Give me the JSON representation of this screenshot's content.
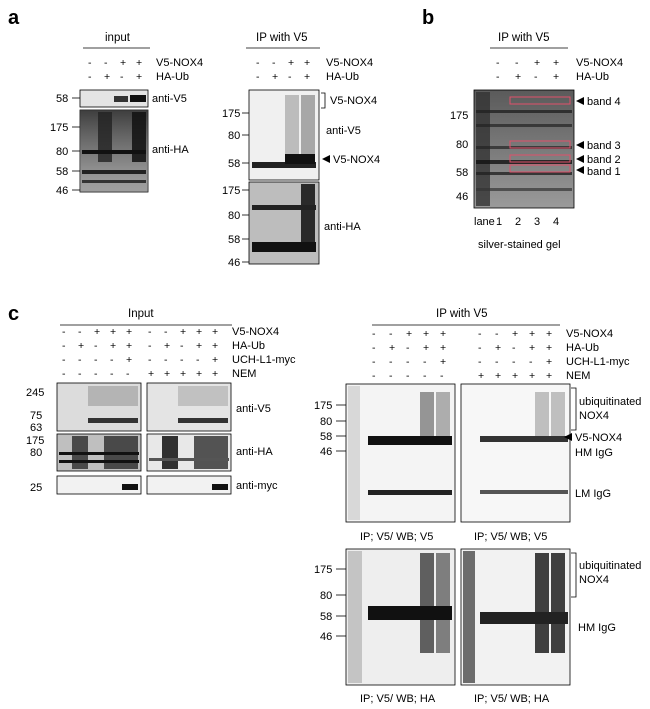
{
  "panel_a": {
    "letter": "a",
    "input": {
      "header": "input",
      "row_labels": [
        "V5-NOX4",
        "HA-Ub"
      ],
      "signs": [
        [
          "-",
          "-",
          "+",
          "+"
        ],
        [
          "-",
          "+",
          "-",
          "+"
        ]
      ],
      "blot1_label": "anti-V5",
      "blot1_markers": [
        "58"
      ],
      "blot2_label": "anti-HA",
      "blot2_markers": [
        "175",
        "80",
        "58",
        "46"
      ]
    },
    "ip": {
      "header": "IP with V5",
      "row_labels": [
        "V5-NOX4",
        "HA-Ub"
      ],
      "signs": [
        [
          "-",
          "-",
          "+",
          "+"
        ],
        [
          "-",
          "+",
          "-",
          "+"
        ]
      ],
      "blot1_markers": [
        "175",
        "80",
        "58"
      ],
      "blot1_labels": [
        "V5-NOX4",
        "anti-V5",
        "V5-NOX4"
      ],
      "blot2_markers": [
        "175",
        "80",
        "58",
        "46"
      ],
      "blot2_label": "anti-HA"
    }
  },
  "panel_b": {
    "letter": "b",
    "header": "IP with V5",
    "row_labels": [
      "V5-NOX4",
      "HA-Ub"
    ],
    "signs": [
      [
        "-",
        "-",
        "+",
        "+"
      ],
      [
        "-",
        "+",
        "-",
        "+"
      ]
    ],
    "markers": [
      "175",
      "80",
      "58",
      "46"
    ],
    "bands": [
      "band 4",
      "band 3",
      "band 2",
      "band 1"
    ],
    "lane_label": "lane",
    "lanes": [
      "1",
      "2",
      "3",
      "4"
    ],
    "caption": "silver-stained gel"
  },
  "panel_c": {
    "letter": "c",
    "input": {
      "header": "Input",
      "row_labels": [
        "V5-NOX4",
        "HA-Ub",
        "UCH-L1-myc",
        "NEM"
      ],
      "signs": [
        [
          "-",
          "-",
          "+",
          "+",
          "+",
          "-",
          "-",
          "+",
          "+",
          "+"
        ],
        [
          "-",
          "+",
          "-",
          "+",
          "+",
          "-",
          "+",
          "-",
          "+",
          "+"
        ],
        [
          "-",
          "-",
          "-",
          "-",
          "+",
          "-",
          "-",
          "-",
          "-",
          "+"
        ],
        [
          "-",
          "-",
          "-",
          "-",
          "-",
          "+",
          "+",
          "+",
          "+",
          "+"
        ]
      ],
      "blot1_markers": [
        "245",
        "75",
        "63"
      ],
      "blot1_label": "anti-V5",
      "blot2_markers": [
        "175",
        "80"
      ],
      "blot2_label": "anti-HA",
      "blot3_markers": [
        "25"
      ],
      "blot3_label": "anti-myc"
    },
    "ip": {
      "header": "IP with V5",
      "row_labels": [
        "V5-NOX4",
        "HA-Ub",
        "UCH-L1-myc",
        "NEM"
      ],
      "signs": [
        [
          "-",
          "-",
          "+",
          "+",
          "+",
          "-",
          "-",
          "+",
          "+",
          "+"
        ],
        [
          "-",
          "+",
          "-",
          "+",
          "+",
          "-",
          "+",
          "-",
          "+",
          "+"
        ],
        [
          "-",
          "-",
          "-",
          "-",
          "+",
          "-",
          "-",
          "-",
          "-",
          "+"
        ],
        [
          "-",
          "-",
          "-",
          "-",
          "-",
          "+",
          "+",
          "+",
          "+",
          "+"
        ]
      ],
      "top_markers": [
        "175",
        "80",
        "58",
        "46"
      ],
      "top_labels": [
        "ubiquitinated",
        "NOX4",
        "V5-NOX4",
        "HM IgG",
        "LM IgG"
      ],
      "top_captions": [
        "IP; V5/ WB; V5",
        "IP; V5/ WB; V5"
      ],
      "bottom_markers": [
        "175",
        "80",
        "58",
        "46"
      ],
      "bottom_labels": [
        "ubiquitinated",
        "NOX4",
        "HM IgG"
      ],
      "bottom_captions": [
        "IP; V5/ WB; HA",
        "IP; V5/ WB; HA"
      ]
    }
  }
}
